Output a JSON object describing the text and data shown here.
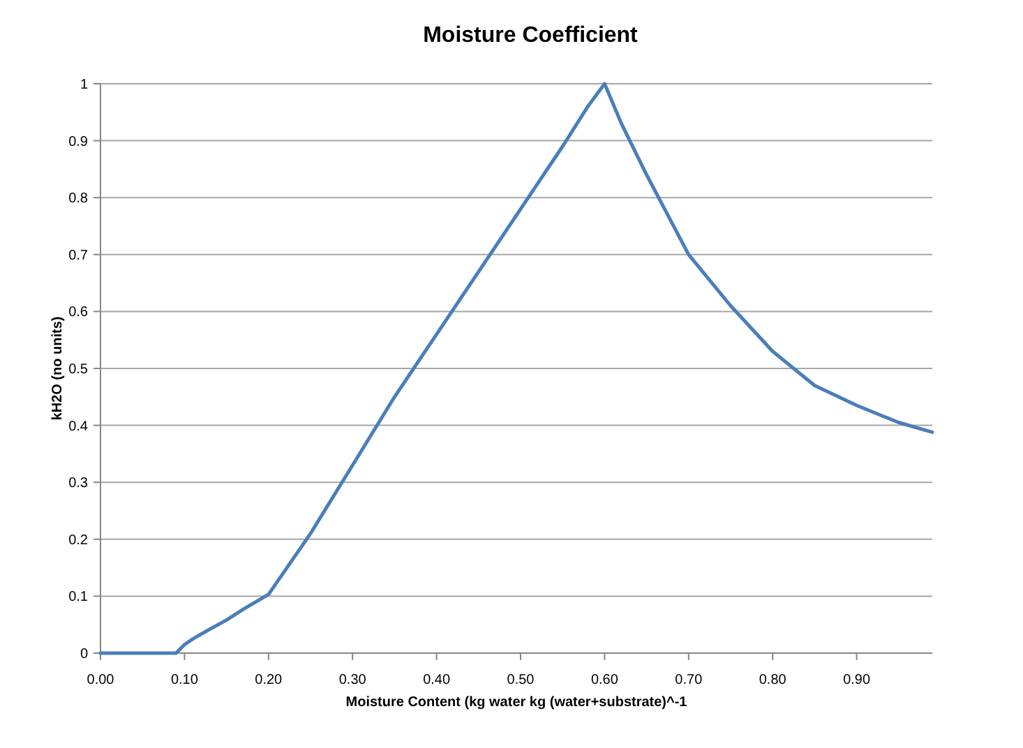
{
  "chart_data": {
    "type": "line",
    "title": "Moisture Coefficient",
    "xlabel": "Moisture Content (kg water kg (water+substrate)^-1",
    "ylabel": "kH2O (no units)",
    "x": [
      0,
      0.09,
      0.1,
      0.11,
      0.13,
      0.15,
      0.17,
      0.2,
      0.25,
      0.3,
      0.35,
      0.4,
      0.45,
      0.5,
      0.55,
      0.58,
      0.6,
      0.62,
      0.65,
      0.7,
      0.75,
      0.8,
      0.85,
      0.9,
      0.95,
      0.99
    ],
    "series": [
      {
        "color": "#4a7ebb",
        "values": [
          0,
          0,
          0.015,
          0.025,
          0.042,
          0.058,
          0.077,
          0.103,
          0.21,
          0.33,
          0.45,
          0.56,
          0.67,
          0.78,
          0.89,
          0.96,
          1,
          0.93,
          0.84,
          0.7,
          0.61,
          0.53,
          0.47,
          0.435,
          0.405,
          0.388
        ]
      }
    ],
    "xlim": [
      0,
      0.99
    ],
    "xticks": [
      {
        "value": 0,
        "label": "0.00"
      },
      {
        "value": 0.1,
        "label": "0.10"
      },
      {
        "value": 0.2,
        "label": "0.20"
      },
      {
        "value": 0.3,
        "label": "0.30"
      },
      {
        "value": 0.4,
        "label": "0.40"
      },
      {
        "value": 0.5,
        "label": "0.50"
      },
      {
        "value": 0.6,
        "label": "0.60"
      },
      {
        "value": 0.7,
        "label": "0.70"
      },
      {
        "value": 0.8,
        "label": "0.80"
      },
      {
        "value": 0.9,
        "label": "0.90"
      }
    ],
    "ylim": [
      0,
      1
    ],
    "yticks": [
      0,
      0.1,
      0.2,
      0.3,
      0.4,
      0.5,
      0.6,
      0.7,
      0.8,
      0.9,
      1
    ],
    "grid": "y",
    "marker": "none",
    "line_style": "solid"
  }
}
